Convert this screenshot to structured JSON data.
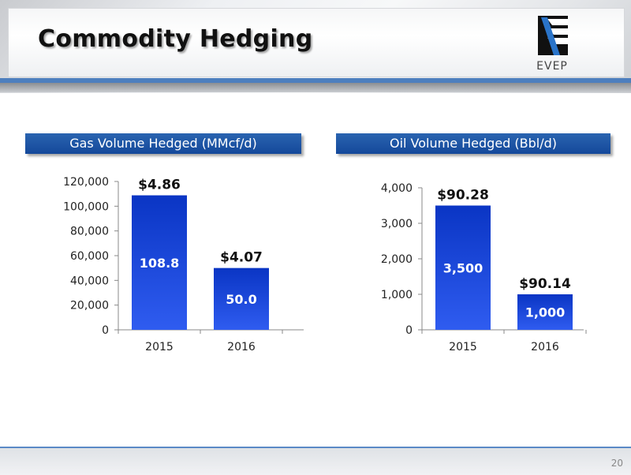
{
  "header": {
    "title": "Commodity Hedging",
    "logo_text": "EVEP"
  },
  "footer": {
    "page_number": "20"
  },
  "colors": {
    "bar_top": "#0a35c4",
    "bar_bottom": "#2f5cf0",
    "panel_title_bg": "#1c52a3",
    "accent_line": "#4d7fbe"
  },
  "chart_data": [
    {
      "type": "bar",
      "title": "Gas Volume Hedged (MMcf/d)",
      "categories": [
        "2015",
        "2016"
      ],
      "values": [
        108800,
        50000
      ],
      "value_labels": [
        "108.8",
        "50.0"
      ],
      "price_labels": [
        "$4.86",
        "$4.07"
      ],
      "ylim": [
        0,
        120000
      ],
      "yticks": [
        0,
        20000,
        40000,
        60000,
        80000,
        100000,
        120000
      ],
      "ytick_labels": [
        "0",
        "20,000",
        "40,000",
        "60,000",
        "80,000",
        "100,000",
        "120,000"
      ],
      "grid": false
    },
    {
      "type": "bar",
      "title": "Oil Volume Hedged (Bbl/d)",
      "categories": [
        "2015",
        "2016"
      ],
      "values": [
        3500,
        1000
      ],
      "value_labels": [
        "3,500",
        "1,000"
      ],
      "price_labels": [
        "$90.28",
        "$90.14"
      ],
      "ylim": [
        0,
        4000
      ],
      "yticks": [
        0,
        1000,
        2000,
        3000,
        4000
      ],
      "ytick_labels": [
        "0",
        "1,000",
        "2,000",
        "3,000",
        "4,000"
      ],
      "grid": false
    }
  ]
}
